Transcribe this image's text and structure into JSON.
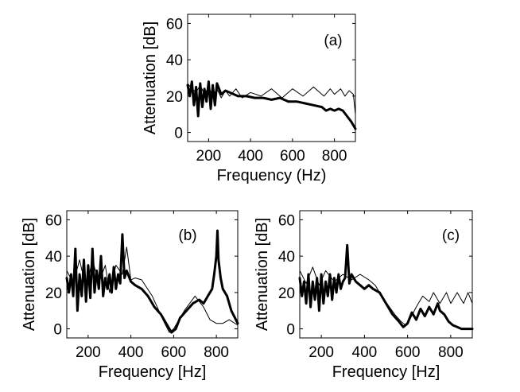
{
  "chart_data": [
    {
      "type": "line",
      "panel_label": "(a)",
      "xlabel": "Frequency (Hz)",
      "ylabel": "Attenuation [dB]",
      "xlim": [
        100,
        900
      ],
      "ylim": [
        -5,
        65
      ],
      "xticks": [
        200,
        400,
        600,
        800
      ],
      "yticks": [
        0,
        20,
        40,
        60
      ],
      "grid": false,
      "series": [
        {
          "style": "thin",
          "x": [
            100,
            120,
            140,
            160,
            180,
            200,
            220,
            240,
            260,
            280,
            300,
            330,
            360,
            400,
            450,
            500,
            550,
            600,
            650,
            700,
            750,
            780,
            800,
            830,
            850,
            870,
            890,
            900
          ],
          "y": [
            27,
            24,
            22,
            26,
            21,
            25,
            20,
            24,
            19,
            23,
            20,
            24,
            19,
            22,
            20,
            24,
            19,
            24,
            20,
            25,
            20,
            24,
            21,
            24,
            20,
            23,
            21,
            10
          ]
        },
        {
          "style": "thick",
          "x": [
            100,
            110,
            120,
            130,
            140,
            150,
            160,
            170,
            180,
            190,
            200,
            210,
            220,
            230,
            240,
            260,
            280,
            300,
            340,
            380,
            420,
            460,
            500,
            540,
            580,
            620,
            660,
            700,
            740,
            760,
            780,
            800,
            820,
            840,
            860,
            880,
            900
          ],
          "y": [
            26,
            20,
            28,
            15,
            25,
            9,
            27,
            14,
            24,
            17,
            28,
            13,
            26,
            15,
            27,
            21,
            23,
            22,
            20,
            20,
            19,
            19,
            18,
            19,
            17,
            17,
            16,
            15,
            14,
            12,
            13,
            12,
            13,
            12,
            9,
            6,
            2
          ]
        }
      ]
    },
    {
      "type": "line",
      "panel_label": "(b)",
      "xlabel": "Frequency [Hz]",
      "ylabel": "Attenuation [dB]",
      "xlim": [
        100,
        900
      ],
      "ylim": [
        -5,
        65
      ],
      "xticks": [
        200,
        400,
        600,
        800
      ],
      "yticks": [
        0,
        20,
        40,
        60
      ],
      "grid": false,
      "series": [
        {
          "style": "thin",
          "x": [
            100,
            130,
            160,
            190,
            220,
            250,
            280,
            300,
            330,
            360,
            380,
            400,
            420,
            450,
            500,
            550,
            580,
            600,
            650,
            700,
            740,
            770,
            800,
            830,
            860,
            900
          ],
          "y": [
            32,
            25,
            38,
            22,
            38,
            25,
            35,
            20,
            35,
            30,
            45,
            27,
            28,
            27,
            18,
            5,
            -2,
            0,
            10,
            18,
            12,
            5,
            3,
            3,
            5,
            2
          ]
        },
        {
          "style": "thick",
          "x": [
            100,
            110,
            120,
            130,
            140,
            150,
            160,
            170,
            180,
            190,
            200,
            210,
            220,
            230,
            240,
            250,
            260,
            270,
            280,
            290,
            300,
            310,
            320,
            330,
            340,
            350,
            360,
            370,
            380,
            400,
            420,
            450,
            480,
            510,
            540,
            570,
            590,
            610,
            630,
            660,
            690,
            720,
            740,
            760,
            780,
            790,
            800,
            805,
            810,
            820,
            830,
            850,
            870,
            900
          ],
          "y": [
            28,
            20,
            30,
            18,
            44,
            10,
            30,
            18,
            38,
            15,
            35,
            17,
            44,
            20,
            32,
            22,
            40,
            18,
            28,
            22,
            30,
            20,
            34,
            22,
            30,
            25,
            52,
            28,
            32,
            26,
            24,
            22,
            18,
            12,
            8,
            2,
            -2,
            0,
            6,
            10,
            14,
            16,
            14,
            18,
            22,
            30,
            40,
            54,
            38,
            28,
            22,
            18,
            10,
            3
          ]
        }
      ]
    },
    {
      "type": "line",
      "panel_label": "(c)",
      "xlabel": "Frequency [Hz]",
      "ylabel": "Attenuation [dB]",
      "xlim": [
        100,
        900
      ],
      "ylim": [
        -5,
        65
      ],
      "xticks": [
        200,
        400,
        600,
        800
      ],
      "yticks": [
        0,
        20,
        40,
        60
      ],
      "grid": false,
      "series": [
        {
          "style": "thin",
          "x": [
            100,
            130,
            160,
            190,
            220,
            260,
            300,
            340,
            380,
            420,
            450,
            480,
            510,
            540,
            570,
            590,
            610,
            640,
            670,
            700,
            720,
            750,
            780,
            800,
            830,
            860,
            880,
            900
          ],
          "y": [
            32,
            25,
            34,
            24,
            32,
            26,
            30,
            27,
            30,
            27,
            24,
            18,
            13,
            8,
            4,
            2,
            5,
            12,
            18,
            15,
            20,
            14,
            20,
            14,
            20,
            14,
            20,
            14
          ]
        },
        {
          "style": "thick",
          "x": [
            100,
            110,
            120,
            130,
            140,
            150,
            160,
            170,
            180,
            190,
            200,
            210,
            220,
            230,
            240,
            250,
            260,
            270,
            280,
            290,
            300,
            310,
            320,
            330,
            340,
            360,
            380,
            400,
            420,
            440,
            470,
            500,
            530,
            560,
            580,
            600,
            620,
            640,
            660,
            680,
            700,
            720,
            740,
            750,
            770,
            790,
            810,
            830,
            850,
            870,
            900
          ],
          "y": [
            28,
            18,
            26,
            14,
            30,
            12,
            26,
            16,
            28,
            10,
            30,
            14,
            26,
            18,
            30,
            16,
            28,
            20,
            30,
            22,
            26,
            28,
            46,
            25,
            30,
            26,
            24,
            22,
            24,
            22,
            20,
            14,
            8,
            4,
            1,
            3,
            9,
            5,
            11,
            7,
            12,
            8,
            14,
            10,
            8,
            4,
            2,
            1,
            0,
            0,
            0
          ]
        }
      ]
    }
  ]
}
